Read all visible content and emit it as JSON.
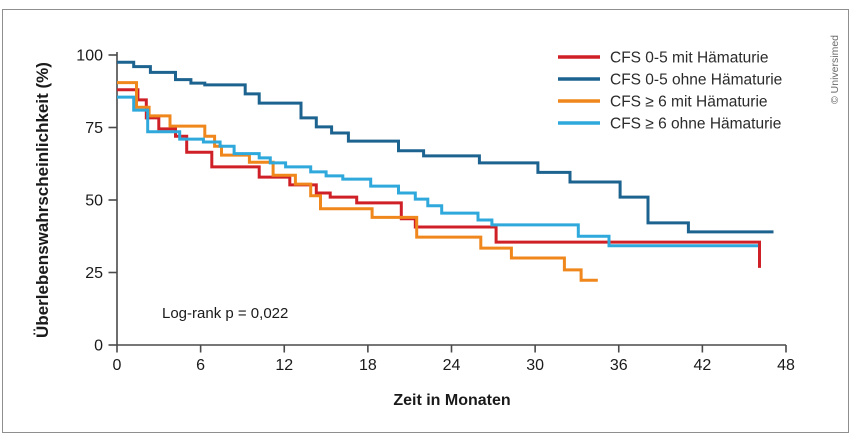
{
  "figure": {
    "credit": "© Universimed",
    "annotation": "Log-rank p = 0,022",
    "border_color": "#8f8f8f",
    "axis_color": "#4a4a4a",
    "background": "#ffffff"
  },
  "chart_data": {
    "type": "line",
    "subtype": "kaplan-meier-step-survival",
    "title": "",
    "xlabel": "Zeit in Monaten",
    "ylabel": "Überlebenswahrscheinlichkeit  (%)",
    "xlim": [
      0,
      48
    ],
    "ylim": [
      0,
      100
    ],
    "xticks": [
      0,
      6,
      12,
      18,
      24,
      30,
      36,
      42,
      48
    ],
    "yticks": [
      0,
      25,
      50,
      75,
      100
    ],
    "grid": false,
    "legend_position": "top-right",
    "annotation": "Log-rank p = 0,022",
    "series": [
      {
        "name": "CFS 0-5 mit Hämaturie",
        "color": "#d02027",
        "end": 46.1,
        "steps": [
          [
            0,
            88
          ],
          [
            1.5,
            84.5
          ],
          [
            2.1,
            78.3
          ],
          [
            3,
            74.5
          ],
          [
            4.2,
            72
          ],
          [
            5,
            66.5
          ],
          [
            6.8,
            61.4
          ],
          [
            10.2,
            57.9
          ],
          [
            12.4,
            55.2
          ],
          [
            14.3,
            52.4
          ],
          [
            15.3,
            51
          ],
          [
            17.2,
            49
          ],
          [
            20.4,
            43.5
          ],
          [
            21.4,
            40.7
          ],
          [
            27.2,
            35.5
          ],
          [
            46.1,
            26.6
          ]
        ]
      },
      {
        "name": "CFS 0-5 ohne Hämaturie",
        "color": "#1d6390",
        "end": 47.1,
        "steps": [
          [
            0,
            97.5
          ],
          [
            1.2,
            96
          ],
          [
            2.4,
            94
          ],
          [
            4.2,
            91.5
          ],
          [
            5.3,
            90.3
          ],
          [
            6.3,
            89.7
          ],
          [
            9.2,
            86.6
          ],
          [
            10.2,
            83.4
          ],
          [
            13.2,
            78.3
          ],
          [
            14.3,
            75.2
          ],
          [
            15.4,
            73.1
          ],
          [
            16.6,
            70.3
          ],
          [
            20.2,
            67
          ],
          [
            22,
            65.2
          ],
          [
            26,
            62.8
          ],
          [
            30.2,
            59.5
          ],
          [
            32.5,
            56.2
          ],
          [
            36.1,
            51
          ],
          [
            38.1,
            42.1
          ],
          [
            41,
            39
          ]
        ]
      },
      {
        "name": "CFS ≥ 6 mit Hämaturie",
        "color": "#f0871c",
        "end": 34.5,
        "steps": [
          [
            0,
            90.5
          ],
          [
            1.4,
            82
          ],
          [
            2.3,
            79
          ],
          [
            3.8,
            75.5
          ],
          [
            6.3,
            72
          ],
          [
            7,
            68.5
          ],
          [
            7.5,
            65.5
          ],
          [
            9.5,
            63
          ],
          [
            11.2,
            58.5
          ],
          [
            12.8,
            55.5
          ],
          [
            13.9,
            51.5
          ],
          [
            14.6,
            47
          ],
          [
            18.3,
            44
          ],
          [
            21.5,
            37.2
          ],
          [
            26.1,
            33.4
          ],
          [
            28.3,
            30
          ],
          [
            32.1,
            25.9
          ],
          [
            33.3,
            22.3
          ]
        ]
      },
      {
        "name": "CFS ≥ 6 ohne Hämaturie",
        "color": "#2fa8dc",
        "end": 46,
        "steps": [
          [
            0,
            85.5
          ],
          [
            1.2,
            81
          ],
          [
            2.2,
            73.5
          ],
          [
            4.5,
            71
          ],
          [
            6.2,
            70
          ],
          [
            7.4,
            68.5
          ],
          [
            8.4,
            66
          ],
          [
            10.2,
            64.5
          ],
          [
            11,
            62.8
          ],
          [
            12.1,
            61.4
          ],
          [
            13.9,
            59.7
          ],
          [
            15,
            58.3
          ],
          [
            16.2,
            57.2
          ],
          [
            18.2,
            54.8
          ],
          [
            20.2,
            52.4
          ],
          [
            21.4,
            50.3
          ],
          [
            22.3,
            48
          ],
          [
            23.3,
            45.5
          ],
          [
            25.9,
            43.1
          ],
          [
            26.9,
            41.4
          ],
          [
            33.1,
            37.5
          ],
          [
            35.3,
            34.2
          ]
        ]
      }
    ]
  }
}
